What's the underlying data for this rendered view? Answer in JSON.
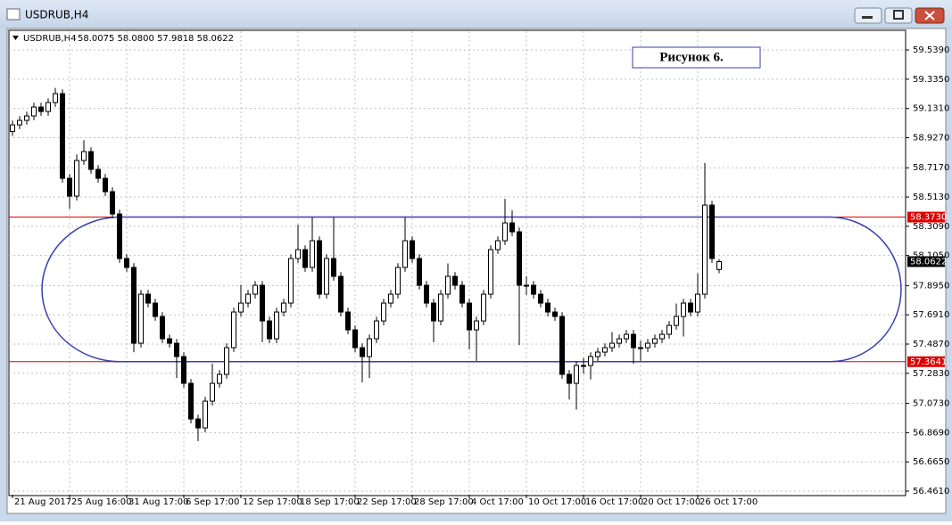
{
  "window_title": "USDRUB,H4",
  "chart_data": {
    "type": "candlestick",
    "symbol": "USDRUB,H4",
    "info": "58.0075 58.0800 57.9818 58.0622",
    "annotation": "Рисунок 6.",
    "categories": [
      "21 Aug 2017",
      null,
      null,
      null,
      null,
      null,
      null,
      null,
      "25 Aug 16:00",
      null,
      null,
      null,
      null,
      null,
      null,
      null,
      "31 Aug 17:00",
      null,
      null,
      null,
      null,
      null,
      null,
      null,
      "6 Sep 17:00",
      null,
      null,
      null,
      null,
      null,
      null,
      null,
      "12 Sep 17:00",
      null,
      null,
      null,
      null,
      null,
      null,
      null,
      "18 Sep 17:00",
      null,
      null,
      null,
      null,
      null,
      null,
      null,
      "22 Sep 17:00",
      null,
      null,
      null,
      null,
      null,
      null,
      null,
      "28 Sep 17:00",
      null,
      null,
      null,
      null,
      null,
      null,
      null,
      "4 Oct 17:00",
      null,
      null,
      null,
      null,
      null,
      null,
      null,
      "10 Oct 17:00",
      null,
      null,
      null,
      null,
      null,
      null,
      null,
      "16 Oct 17:00",
      null,
      null,
      null,
      null,
      null,
      null,
      null,
      "20 Oct 17:00",
      null,
      null,
      null,
      null,
      null,
      null,
      null,
      "26 Oct 17:00",
      null,
      null,
      null
    ],
    "open": [
      58.97,
      59.0166,
      59.0477,
      59.0788,
      59.141,
      59.1099,
      59.1721,
      59.2343,
      58.6435,
      58.5191,
      58.7678,
      58.83,
      58.7057,
      58.6435,
      58.5502,
      58.3947,
      58.0838,
      58.0216,
      57.4929,
      57.835,
      57.7728,
      57.6795,
      57.524,
      57.4929,
      57.3997,
      57.2131,
      56.9643,
      56.9021,
      57.0887,
      57.2131,
      57.2753,
      57.4619,
      57.7106,
      57.7728,
      57.835,
      57.8972,
      57.6484,
      57.524,
      57.7106,
      57.7728,
      58.0838,
      58.1459,
      58.0216,
      58.2081,
      57.835,
      58.0838,
      57.9594,
      57.7106,
      57.5862,
      57.4619,
      57.3997,
      57.524,
      57.6484,
      57.7728,
      57.835,
      58.0216,
      58.2081,
      58.0838,
      57.8972,
      57.7728,
      57.6484,
      57.835,
      57.9594,
      57.8972,
      57.7728,
      57.5862,
      57.6484,
      57.835,
      58.1459,
      58.2081,
      58.3325,
      58.2703,
      57.8972,
      57.8972,
      57.835,
      57.7728,
      57.7106,
      57.6795,
      57.2753,
      57.2131,
      57.3375,
      57.3375,
      57.3997,
      57.4308,
      57.4619,
      57.4929,
      57.524,
      57.5551,
      57.4619,
      57.4619,
      57.4929,
      57.524,
      57.5551,
      57.6173,
      57.6795,
      57.7728,
      57.7106,
      57.835,
      58.4569,
      58.0075
    ],
    "high": [
      59.0466,
      59.0777,
      59.1088,
      59.171,
      59.171,
      59.2021,
      59.2743,
      59.2643,
      58.6735,
      58.81,
      58.91,
      58.86,
      58.7357,
      58.6735,
      58.5802,
      58.4247,
      58.1138,
      58.0516,
      57.865,
      57.865,
      57.8028,
      57.7095,
      57.554,
      57.5229,
      57.4297,
      57.2431,
      56.9943,
      57.1187,
      57.35,
      57.3053,
      57.4919,
      57.7406,
      57.9,
      57.865,
      57.9272,
      57.9272,
      57.6784,
      57.7406,
      57.8028,
      58.1138,
      58.32,
      58.1759,
      58.37,
      58.2381,
      58.1138,
      58.37,
      57.9894,
      57.7406,
      57.6162,
      57.4919,
      57.554,
      57.6784,
      57.8028,
      57.865,
      58.0516,
      58.37,
      58.2381,
      58.1138,
      57.9272,
      57.8028,
      57.865,
      58.05,
      57.9894,
      57.9272,
      57.8028,
      57.6784,
      57.865,
      58.1759,
      58.2381,
      58.5,
      58.42,
      58.3003,
      57.96,
      57.9272,
      57.865,
      57.8028,
      57.7406,
      57.7095,
      57.3053,
      57.3675,
      57.39,
      57.4297,
      57.4608,
      57.4919,
      57.57,
      57.554,
      57.5851,
      57.5851,
      57.51,
      57.5229,
      57.554,
      57.5851,
      57.6473,
      57.77,
      57.8028,
      57.8028,
      57.98,
      58.75,
      58.4869,
      58.08
    ],
    "low": [
      58.94,
      58.9866,
      59.0177,
      59.0488,
      59.0799,
      59.0799,
      59.1421,
      58.6135,
      58.43,
      58.4891,
      58.7378,
      58.6757,
      58.6135,
      58.5202,
      58.3647,
      58.0538,
      57.9916,
      57.43,
      57.4629,
      57.7428,
      57.6495,
      57.494,
      57.4629,
      57.25,
      57.1831,
      56.9343,
      56.81,
      56.8721,
      57.0587,
      57.1831,
      57.2453,
      57.4319,
      57.6806,
      57.7428,
      57.805,
      57.5,
      57.494,
      57.494,
      57.6806,
      57.7428,
      58.0538,
      57.9916,
      57.9916,
      57.805,
      57.805,
      57.9294,
      57.6806,
      57.5562,
      57.4319,
      57.22,
      57.25,
      57.494,
      57.6184,
      57.7428,
      57.805,
      57.9916,
      58.0538,
      57.8672,
      57.7428,
      57.5,
      57.6184,
      57.805,
      57.8672,
      57.7428,
      57.45,
      57.37,
      57.6184,
      57.805,
      58.1159,
      58.1781,
      58.2403,
      57.48,
      57.83,
      57.805,
      57.7428,
      57.6806,
      57.6495,
      57.2453,
      57.1,
      57.03,
      57.28,
      57.24,
      57.3697,
      57.4008,
      57.4319,
      57.4629,
      57.494,
      57.35,
      57.37,
      57.4319,
      57.4629,
      57.494,
      57.5251,
      57.5873,
      57.54,
      57.6806,
      57.6806,
      57.805,
      58.0538,
      57.9818
    ],
    "close": [
      59.0166,
      59.0477,
      59.0788,
      59.141,
      59.1099,
      59.1721,
      59.2343,
      58.6435,
      58.5191,
      58.7678,
      58.83,
      58.7057,
      58.6435,
      58.5502,
      58.3947,
      58.0838,
      58.0216,
      57.4929,
      57.835,
      57.7728,
      57.6795,
      57.524,
      57.4929,
      57.3997,
      57.2131,
      56.9643,
      56.9021,
      57.0887,
      57.2131,
      57.2753,
      57.4619,
      57.7106,
      57.7728,
      57.835,
      57.8972,
      57.6484,
      57.524,
      57.7106,
      57.7728,
      58.0838,
      58.1459,
      58.0216,
      58.2081,
      57.835,
      58.0838,
      57.9594,
      57.7106,
      57.5862,
      57.4619,
      57.3997,
      57.524,
      57.6484,
      57.7728,
      57.835,
      58.0216,
      58.2081,
      58.0838,
      57.8972,
      57.7728,
      57.6484,
      57.835,
      57.9594,
      57.8972,
      57.7728,
      57.5862,
      57.6484,
      57.835,
      58.1459,
      58.2081,
      58.3325,
      58.2703,
      57.8972,
      57.8972,
      57.835,
      57.7728,
      57.7106,
      57.6795,
      57.2753,
      57.2131,
      57.3375,
      57.3375,
      57.3997,
      57.4308,
      57.4619,
      57.4929,
      57.524,
      57.5551,
      57.4619,
      57.4619,
      57.4929,
      57.524,
      57.5551,
      57.6173,
      57.6795,
      57.7728,
      57.7106,
      57.835,
      58.4569,
      58.0838,
      58.0622
    ],
    "ylim": [
      56.436,
      59.67
    ],
    "yticks": [
      {
        "value": 59.539,
        "label": "59.5390"
      },
      {
        "value": 59.335,
        "label": "59.3350"
      },
      {
        "value": 59.131,
        "label": "59.1310"
      },
      {
        "value": 58.927,
        "label": "58.9270"
      },
      {
        "value": 58.717,
        "label": "58.7170"
      },
      {
        "value": 58.513,
        "label": "58.5130"
      },
      {
        "value": 58.309,
        "label": "58.3090"
      },
      {
        "value": 58.105,
        "label": "58.1050"
      },
      {
        "value": 57.895,
        "label": "57.8950"
      },
      {
        "value": 57.691,
        "label": "57.6910"
      },
      {
        "value": 57.487,
        "label": "57.4870"
      },
      {
        "value": 57.283,
        "label": "57.2830"
      },
      {
        "value": 57.073,
        "label": "57.0730"
      },
      {
        "value": 56.869,
        "label": "56.8690"
      },
      {
        "value": 56.665,
        "label": "56.6650"
      },
      {
        "value": 56.461,
        "label": "56.4610"
      }
    ],
    "hlines": [
      {
        "value": 58.373,
        "label": "58.3730",
        "color": "#e00000"
      },
      {
        "value": 57.3641,
        "label": "57.3641",
        "color": "#e00000"
      }
    ],
    "last_price": {
      "value": 58.0622,
      "label": "58.0622"
    },
    "channel_color": "#3a3fb0",
    "grid": true
  }
}
